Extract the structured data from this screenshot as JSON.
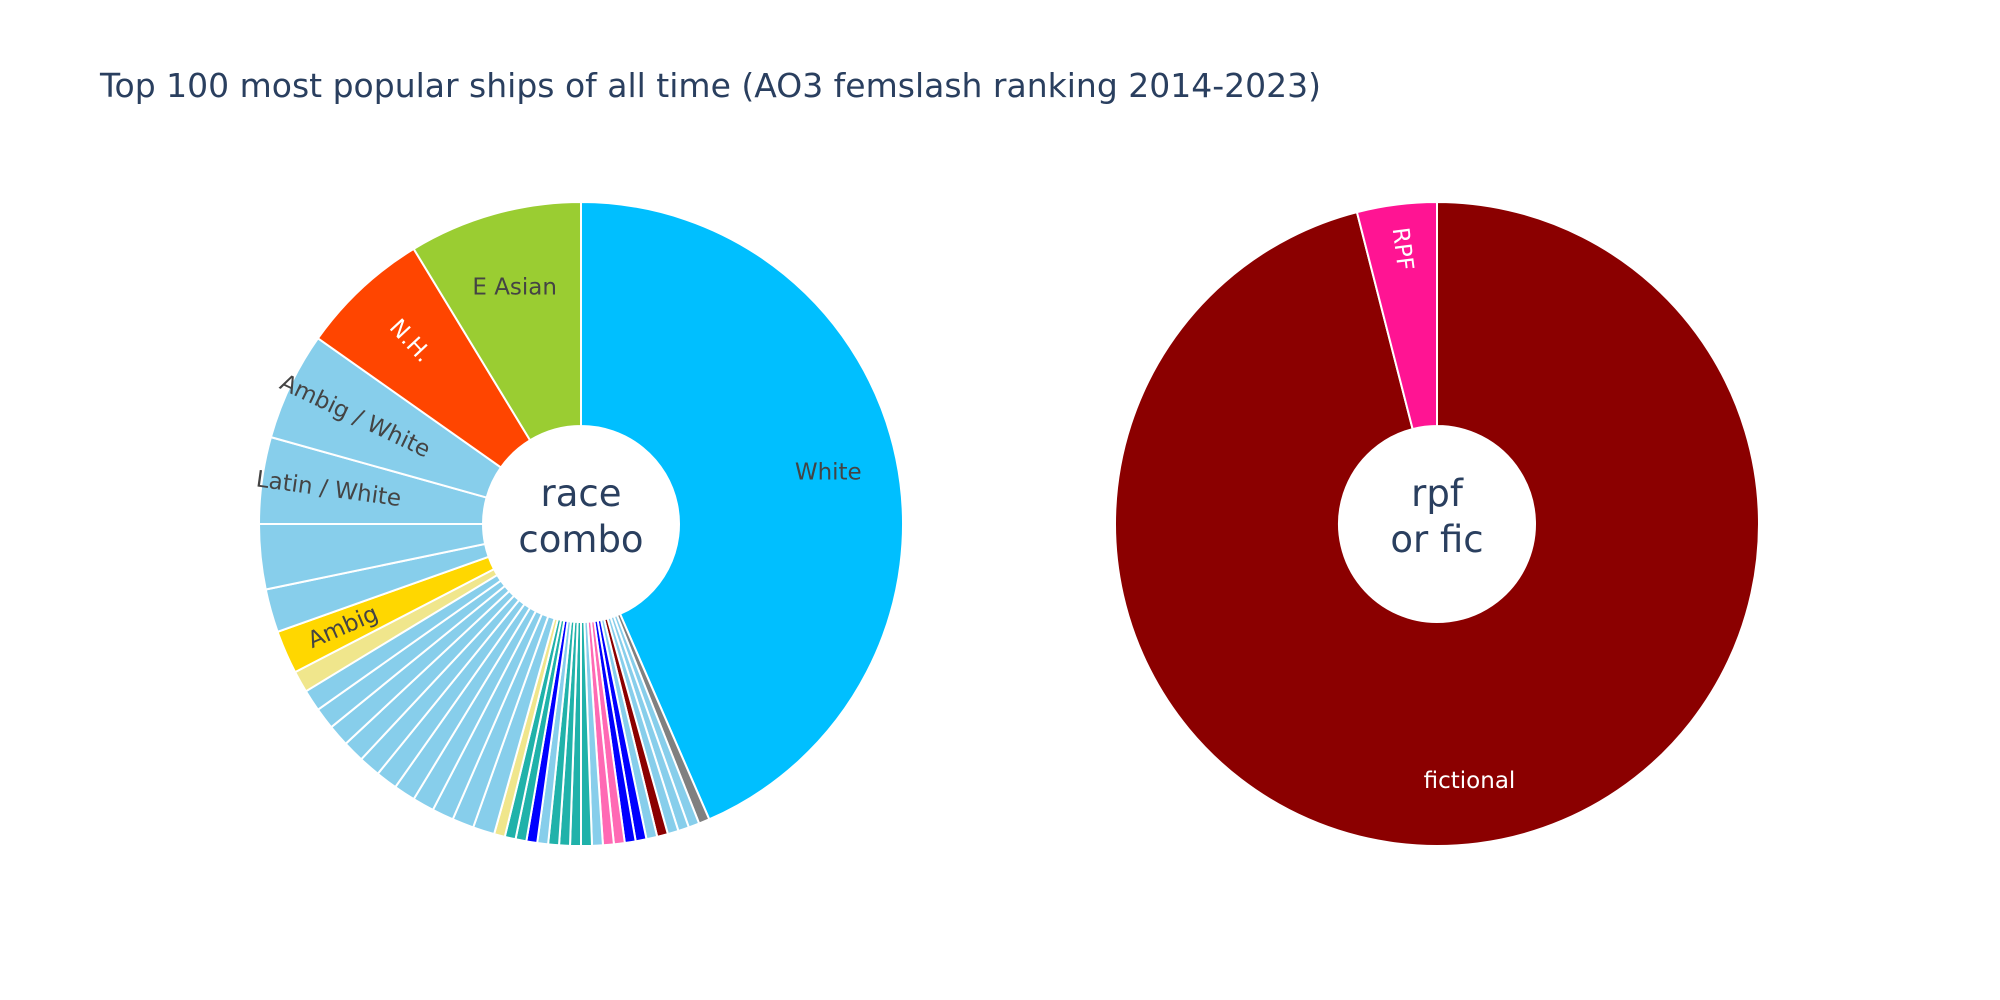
{
  "title": "Top 100 most popular ships of all time (AO3 femslash ranking 2014-2023)",
  "chart_data": [
    {
      "type": "pie",
      "hole_label": [
        "race",
        "combo"
      ],
      "direction": "clockwise",
      "start": "top",
      "slices": [
        {
          "label": "White",
          "value": 40,
          "color": "#00bfff",
          "text": "White",
          "text_color": "#444444"
        },
        {
          "label": "",
          "value": 0.5,
          "color": "#808080"
        },
        {
          "label": "",
          "value": 0.5,
          "color": "#87ceeb"
        },
        {
          "label": "",
          "value": 0.5,
          "color": "#87ceeb"
        },
        {
          "label": "",
          "value": 0.5,
          "color": "#87ceeb"
        },
        {
          "label": "",
          "value": 0.5,
          "color": "#8b0000"
        },
        {
          "label": "",
          "value": 0.5,
          "color": "#87ceeb"
        },
        {
          "label": "",
          "value": 0.5,
          "color": "#0000ff"
        },
        {
          "label": "",
          "value": 0.5,
          "color": "#0000ff"
        },
        {
          "label": "",
          "value": 0.5,
          "color": "#ff69b4"
        },
        {
          "label": "",
          "value": 0.5,
          "color": "#ff69b4"
        },
        {
          "label": "",
          "value": 0.5,
          "color": "#87ceeb"
        },
        {
          "label": "",
          "value": 0.5,
          "color": "#20b2aa"
        },
        {
          "label": "",
          "value": 0.5,
          "color": "#20b2aa"
        },
        {
          "label": "",
          "value": 0.5,
          "color": "#20b2aa"
        },
        {
          "label": "",
          "value": 0.5,
          "color": "#20b2aa"
        },
        {
          "label": "",
          "value": 0.5,
          "color": "#87ceeb"
        },
        {
          "label": "",
          "value": 0.5,
          "color": "#0000ff"
        },
        {
          "label": "",
          "value": 0.5,
          "color": "#20b2aa"
        },
        {
          "label": "",
          "value": 0.5,
          "color": "#20b2aa"
        },
        {
          "label": "",
          "value": 0.5,
          "color": "#f0e68c"
        },
        {
          "label": "",
          "value": 1,
          "color": "#87ceeb"
        },
        {
          "label": "",
          "value": 1,
          "color": "#87ceeb"
        },
        {
          "label": "",
          "value": 1,
          "color": "#87ceeb"
        },
        {
          "label": "",
          "value": 1,
          "color": "#87ceeb"
        },
        {
          "label": "",
          "value": 1,
          "color": "#87ceeb"
        },
        {
          "label": "",
          "value": 1,
          "color": "#87ceeb"
        },
        {
          "label": "",
          "value": 1,
          "color": "#87ceeb"
        },
        {
          "label": "",
          "value": 1,
          "color": "#87ceeb"
        },
        {
          "label": "",
          "value": 1,
          "color": "#87ceeb"
        },
        {
          "label": "",
          "value": 1,
          "color": "#87ceeb"
        },
        {
          "label": "",
          "value": 1,
          "color": "#87ceeb"
        },
        {
          "label": "",
          "value": 1,
          "color": "#f0e68c"
        },
        {
          "label": "Ambig",
          "value": 2,
          "color": "#ffd700",
          "text": "Ambig",
          "text_color": "#444444"
        },
        {
          "label": "",
          "value": 2,
          "color": "#87ceeb"
        },
        {
          "label": "",
          "value": 3,
          "color": "#87ceeb"
        },
        {
          "label": "Latin / White",
          "value": 4,
          "color": "#87ceeb",
          "text": "Latin / White",
          "text_color": "#444444"
        },
        {
          "label": "Ambig / White",
          "value": 5,
          "color": "#87ceeb",
          "text": "Ambig / White",
          "text_color": "#444444"
        },
        {
          "label": "N.H.",
          "value": 6,
          "color": "#ff4500",
          "text": "N.H.",
          "text_color": "#ffffff"
        },
        {
          "label": "E Asian",
          "value": 8,
          "color": "#9acd32",
          "text": "E Asian",
          "text_color": "#444444"
        }
      ]
    },
    {
      "type": "pie",
      "hole_label": [
        "rpf",
        "or fic"
      ],
      "direction": "clockwise",
      "start": "top",
      "slices": [
        {
          "label": "fictional",
          "value": 96,
          "color": "#8b0000",
          "text": "fictional",
          "text_color": "#ffffff"
        },
        {
          "label": "RPF",
          "value": 4,
          "color": "#ff1493",
          "text": "RPF",
          "text_color": "#ffffff"
        }
      ]
    }
  ]
}
